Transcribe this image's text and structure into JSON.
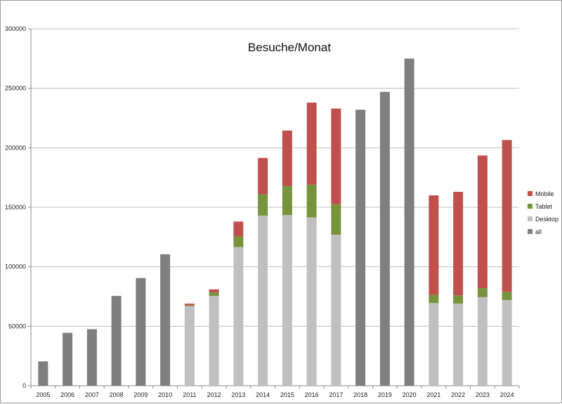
{
  "chart_data": {
    "type": "bar",
    "stacked": true,
    "title": "Besuche/Monat",
    "xlabel": "",
    "ylabel": "",
    "ylim": [
      0,
      300000
    ],
    "yticks": [
      0,
      50000,
      100000,
      150000,
      200000,
      250000,
      300000
    ],
    "grid": true,
    "legend_position": "right",
    "categories": [
      "2005",
      "2006",
      "2007",
      "2008",
      "2009",
      "2010",
      "2011",
      "2012",
      "2013",
      "2014",
      "2015",
      "2016",
      "2017",
      "2018",
      "2019",
      "2020",
      "2021",
      "2022",
      "2023",
      "2024"
    ],
    "series": [
      {
        "name": "all",
        "color": "#7f7f7f",
        "values": [
          20500,
          44500,
          47500,
          75500,
          90500,
          110500,
          0,
          0,
          0,
          0,
          0,
          0,
          0,
          232000,
          247000,
          275000,
          0,
          0,
          0,
          0
        ]
      },
      {
        "name": "Desktop",
        "color": "#c0c0c0",
        "values": [
          0,
          0,
          0,
          0,
          0,
          0,
          67000,
          75500,
          116500,
          143000,
          143500,
          141500,
          127000,
          0,
          0,
          0,
          69500,
          69000,
          74500,
          72000
        ]
      },
      {
        "name": "Tablet",
        "color": "#77933c",
        "values": [
          0,
          0,
          0,
          0,
          0,
          0,
          500,
          3000,
          9000,
          18000,
          24500,
          27500,
          25500,
          0,
          0,
          0,
          7000,
          7000,
          7500,
          7000
        ]
      },
      {
        "name": "Mobile",
        "color": "#c0504d",
        "values": [
          0,
          0,
          0,
          0,
          0,
          0,
          1500,
          2500,
          12500,
          30500,
          46500,
          69000,
          80500,
          0,
          0,
          0,
          83500,
          87000,
          111500,
          127500
        ]
      }
    ],
    "legend_order": [
      "Mobile",
      "Tablet",
      "Desktop",
      "all"
    ]
  }
}
